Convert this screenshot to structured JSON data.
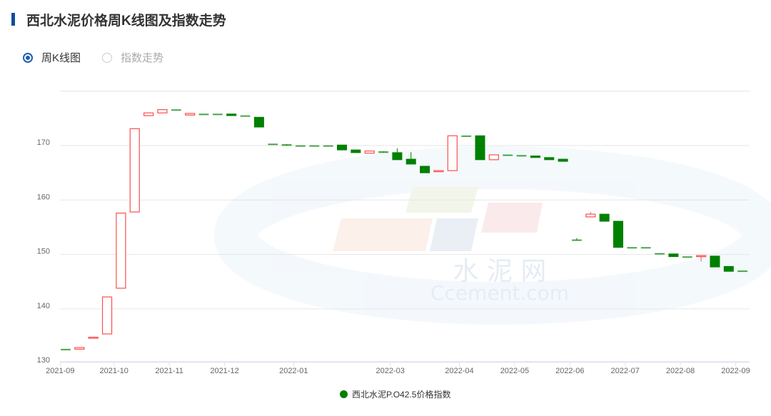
{
  "header": {
    "title": "西北水泥价格周K线图及指数走势"
  },
  "view_toggle": {
    "options": [
      {
        "label": "周K线图",
        "selected": true
      },
      {
        "label": "指数走势",
        "selected": false
      }
    ]
  },
  "watermark": {
    "cn": "水 泥 网",
    "en": "Ccement.com"
  },
  "colors": {
    "up": "#ff4d4d",
    "down": "#008000",
    "accent": "#1b5fad"
  },
  "chart_data": {
    "type": "candlestick",
    "ylim": [
      130,
      180
    ],
    "y_ticks": [
      130,
      140,
      150,
      160,
      170
    ],
    "grid": true,
    "legend": {
      "position": "bottom",
      "entries": [
        "西北水泥P.O42.5价格指数"
      ]
    },
    "x_ticks": [
      {
        "label": "2021-09",
        "index": 0
      },
      {
        "label": "2021-10",
        "index": 4
      },
      {
        "label": "2021-11",
        "index": 8
      },
      {
        "label": "2021-12",
        "index": 12
      },
      {
        "label": "2022-01",
        "index": 17
      },
      {
        "label": "2022-03",
        "index": 24
      },
      {
        "label": "2022-04",
        "index": 29
      },
      {
        "label": "2022-05",
        "index": 33
      },
      {
        "label": "2022-06",
        "index": 37
      },
      {
        "label": "2022-07",
        "index": 41
      },
      {
        "label": "2022-08",
        "index": 45
      },
      {
        "label": "2022-09",
        "index": 49
      }
    ],
    "ohlc": [
      [
        132.6,
        132.6,
        132.6,
        132.6
      ],
      [
        132.6,
        132.9,
        132.6,
        132.9
      ],
      [
        134.6,
        134.8,
        134.6,
        134.8
      ],
      [
        135.4,
        142.2,
        135.4,
        142.2
      ],
      [
        143.8,
        157.6,
        143.8,
        157.6
      ],
      [
        157.8,
        173.1,
        157.8,
        173.1
      ],
      [
        175.5,
        176.0,
        175.5,
        176.0
      ],
      [
        176.0,
        176.6,
        176.0,
        176.6
      ],
      [
        176.6,
        176.6,
        176.6,
        176.6
      ],
      [
        175.6,
        175.9,
        175.6,
        175.9
      ],
      [
        175.8,
        175.8,
        175.8,
        175.8
      ],
      [
        175.8,
        175.8,
        175.8,
        175.8
      ],
      [
        175.8,
        175.8,
        175.5,
        175.5
      ],
      [
        175.5,
        175.5,
        175.5,
        175.5
      ],
      [
        175.2,
        175.2,
        173.4,
        173.4
      ],
      [
        170.3,
        170.3,
        170.3,
        170.3
      ],
      [
        170.2,
        170.2,
        170.0,
        170.0
      ],
      [
        170.0,
        170.0,
        170.0,
        170.0
      ],
      [
        170.0,
        170.0,
        170.0,
        170.0
      ],
      [
        170.0,
        170.0,
        170.0,
        170.0
      ],
      [
        170.1,
        170.1,
        169.2,
        169.2
      ],
      [
        169.2,
        169.2,
        168.7,
        168.7
      ],
      [
        168.6,
        169.0,
        168.6,
        169.0
      ],
      [
        168.9,
        168.9,
        168.7,
        168.7
      ],
      [
        168.7,
        169.5,
        167.4,
        167.4
      ],
      [
        167.5,
        168.8,
        166.6,
        166.6
      ],
      [
        166.2,
        166.2,
        165.0,
        165.0
      ],
      [
        165.2,
        165.4,
        165.2,
        165.4
      ],
      [
        165.4,
        171.8,
        165.4,
        171.8
      ],
      [
        171.8,
        171.8,
        171.8,
        171.8
      ],
      [
        171.8,
        171.8,
        167.4,
        167.4
      ],
      [
        167.4,
        168.3,
        167.4,
        168.3
      ],
      [
        168.3,
        168.3,
        168.3,
        168.3
      ],
      [
        168.2,
        168.2,
        168.1,
        168.1
      ],
      [
        168.1,
        168.1,
        167.8,
        167.8
      ],
      [
        167.8,
        167.8,
        167.4,
        167.4
      ],
      [
        167.5,
        167.5,
        167.1,
        167.1
      ],
      [
        152.7,
        153.0,
        152.6,
        152.6
      ],
      [
        156.9,
        157.8,
        156.9,
        157.4
      ],
      [
        157.4,
        157.4,
        156.1,
        156.1
      ],
      [
        156.1,
        156.1,
        151.3,
        151.3
      ],
      [
        151.3,
        151.3,
        151.3,
        151.3
      ],
      [
        151.3,
        151.3,
        151.3,
        151.3
      ],
      [
        150.2,
        150.2,
        150.1,
        150.1
      ],
      [
        150.1,
        150.1,
        149.6,
        149.6
      ],
      [
        149.6,
        149.6,
        149.6,
        149.6
      ],
      [
        149.6,
        149.8,
        148.7,
        149.8
      ],
      [
        149.7,
        149.7,
        147.7,
        147.7
      ],
      [
        147.8,
        147.8,
        146.9,
        146.9
      ],
      [
        147.0,
        147.0,
        147.0,
        147.0
      ]
    ],
    "ohlc_order": [
      "open",
      "high",
      "low",
      "close"
    ]
  }
}
